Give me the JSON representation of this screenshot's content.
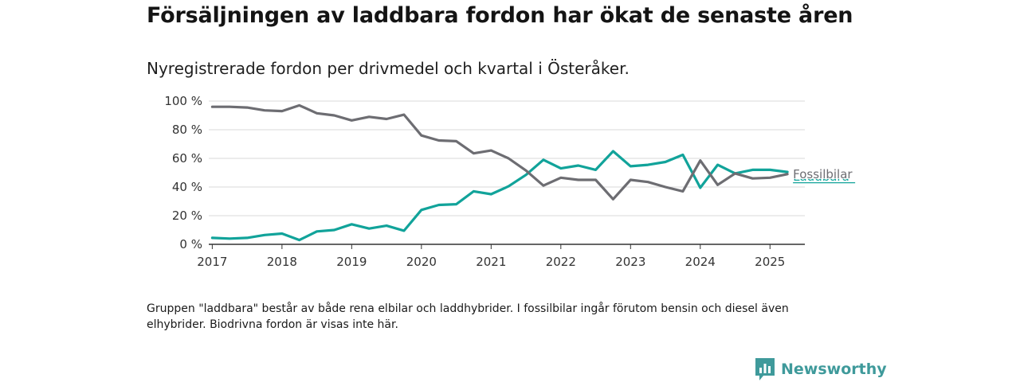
{
  "header": {
    "title": "Försäljningen av laddbara fordon har ökat de senaste åren",
    "subtitle": "Nyregistrerade fordon per drivmedel och kvartal i Österåker."
  },
  "footer": {
    "note": "Gruppen \"laddbara\" består av både rena elbilar och laddhybrider. I fossilbilar ingår förutom bensin och diesel även elhybrider. Biodrivna fordon är visas inte här.",
    "brand": "Newsworthy"
  },
  "colors": {
    "laddbara": "#11a39a",
    "fossilbilar": "#6d6d72",
    "grid": "#d9d9d9",
    "brand": "#3f9a9b"
  },
  "chart_data": {
    "type": "line",
    "title": "Försäljningen av laddbara fordon har ökat de senaste åren",
    "subtitle": "Nyregistrerade fordon per drivmedel och kvartal i Österåker.",
    "xlabel": "",
    "ylabel": "",
    "xlim": [
      2016.95,
      2025.5
    ],
    "ylim": [
      0,
      100
    ],
    "yticks": [
      0,
      20,
      40,
      60,
      80,
      100
    ],
    "ytick_labels": [
      "0 %",
      "20 %",
      "40 %",
      "60 %",
      "80 %",
      "100 %"
    ],
    "xticks": [
      2017,
      2018,
      2019,
      2020,
      2021,
      2022,
      2023,
      2024,
      2025
    ],
    "xtick_labels": [
      "2017",
      "2018",
      "2019",
      "2020",
      "2021",
      "2022",
      "2023",
      "2024",
      "2025"
    ],
    "grid": true,
    "x": [
      "2017-Q1",
      "2017-Q2",
      "2017-Q3",
      "2017-Q4",
      "2018-Q1",
      "2018-Q2",
      "2018-Q3",
      "2018-Q4",
      "2019-Q1",
      "2019-Q2",
      "2019-Q3",
      "2019-Q4",
      "2020-Q1",
      "2020-Q2",
      "2020-Q3",
      "2020-Q4",
      "2021-Q1",
      "2021-Q2",
      "2021-Q3",
      "2021-Q4",
      "2022-Q1",
      "2022-Q2",
      "2022-Q3",
      "2022-Q4",
      "2023-Q1",
      "2023-Q2",
      "2023-Q3",
      "2023-Q4",
      "2024-Q1",
      "2024-Q2",
      "2024-Q3",
      "2024-Q4",
      "2025-Q1",
      "2025-Q2"
    ],
    "series": [
      {
        "name": "Fossilbilar",
        "color": "#6d6d72",
        "values": [
          96,
          96,
          95.5,
          93.5,
          93,
          97,
          91.5,
          90,
          86.5,
          89,
          87.5,
          90.5,
          76,
          72.5,
          72,
          63.5,
          65.5,
          60,
          51.5,
          41,
          46.5,
          45,
          45,
          31.5,
          45,
          43.5,
          40,
          37,
          58.5,
          41.5,
          49.5,
          46,
          46.5,
          49
        ]
      },
      {
        "name": "Laddbara",
        "color": "#11a39a",
        "values": [
          4.5,
          4,
          4.5,
          6.5,
          7.5,
          3,
          9,
          10,
          14,
          11,
          13,
          9.5,
          24,
          27.5,
          28,
          37,
          35,
          40.5,
          48.5,
          59,
          53,
          55,
          52,
          65,
          54.5,
          55.5,
          57.5,
          62.5,
          39.5,
          55.5,
          49.5,
          52,
          52,
          50.5
        ]
      }
    ]
  }
}
